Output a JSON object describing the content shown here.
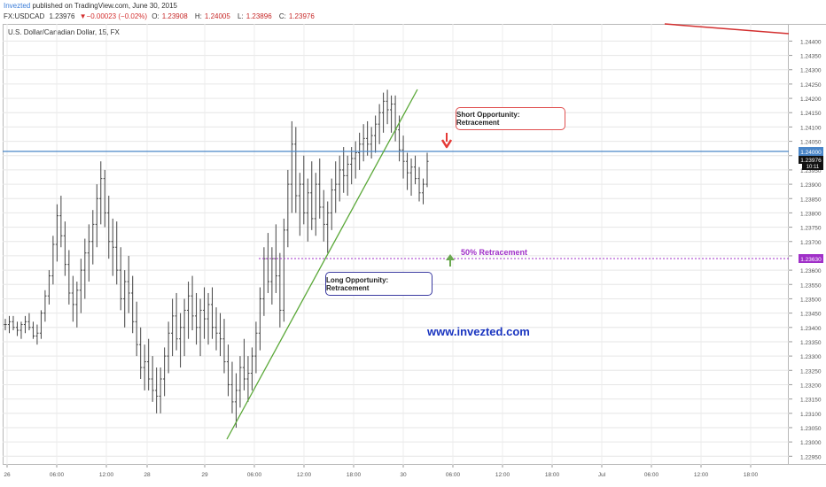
{
  "header": {
    "brand": "Invezted",
    "published": " published on TradingView.com, June 30, 2015",
    "symbol": "FX:USDCAD",
    "last": "1.23976",
    "change": "▼−0.00023 (−0.02%)",
    "open_label": "O:",
    "open": "1.23908",
    "high_label": "H:",
    "high": "1.24005",
    "low_label": "L:",
    "low": "1.23896",
    "close_label": "C:",
    "close": "1.23976"
  },
  "chart_title": "U.S. Dollar/Canadian Dollar, 15, FX",
  "annotations": {
    "short": "Short Opportunity: Retracement",
    "long": "Long Opportunity: Retracement",
    "retracement": "50% Retracement",
    "watermark": "www.invezted.com"
  },
  "colors": {
    "up_arrow": "#6aa84f",
    "down_arrow": "#e53935",
    "resistance_line": "#4a86c8",
    "retracement_line": "#a030c8",
    "trend_line": "#5aa838",
    "top_line": "#d32f2f"
  },
  "chart_data": {
    "type": "bar",
    "title": "U.S. Dollar/Canadian Dollar, 15, FX",
    "ylim": [
      1.2292,
      1.2446
    ],
    "y_ticks": [
      1.244,
      1.2435,
      1.243,
      1.2425,
      1.242,
      1.2415,
      1.241,
      1.2405,
      1.24,
      1.2395,
      1.239,
      1.2385,
      1.238,
      1.2375,
      1.237,
      1.2365,
      1.236,
      1.2355,
      1.235,
      1.2345,
      1.234,
      1.2335,
      1.233,
      1.2325,
      1.232,
      1.2315,
      1.231,
      1.2305,
      1.23,
      1.2295
    ],
    "y_tick_labels": [
      "1.24400",
      "1.24350",
      "1.24300",
      "1.24250",
      "1.24200",
      "1.24150",
      "1.24100",
      "1.24050",
      "1.24000",
      "1.23950",
      "1.23900",
      "1.23850",
      "1.23800",
      "1.23750",
      "1.23700",
      "1.23650",
      "1.23600",
      "1.23550",
      "1.23500",
      "1.23450",
      "1.23400",
      "1.23350",
      "1.23300",
      "1.23250",
      "1.23200",
      "1.23150",
      "1.23100",
      "1.23050",
      "1.23000",
      "1.22950"
    ],
    "x_ticks": [
      "26",
      "06:00",
      "12:00",
      "28",
      "29",
      "06:00",
      "12:00",
      "18:00",
      "30",
      "06:00",
      "12:00",
      "18:00",
      "Jul",
      "06:00",
      "12:00",
      "18:00"
    ],
    "price_labels": {
      "resistance": "1.24000",
      "last": "1.23976",
      "time": "10:11",
      "retracement": "1.23630"
    },
    "levels": {
      "resistance": 1.24,
      "retracement": 1.2363
    },
    "ohlc_bars": [
      [
        1.2341,
        1.2343,
        1.2339,
        1.2341
      ],
      [
        1.2341,
        1.2344,
        1.2338,
        1.2342
      ],
      [
        1.2342,
        1.2344,
        1.2339,
        1.234
      ],
      [
        1.234,
        1.2342,
        1.2337,
        1.2339
      ],
      [
        1.2339,
        1.2342,
        1.2336,
        1.2341
      ],
      [
        1.2341,
        1.2344,
        1.2338,
        1.2342
      ],
      [
        1.2342,
        1.2345,
        1.2339,
        1.234
      ],
      [
        1.234,
        1.2342,
        1.2336,
        1.2337
      ],
      [
        1.2337,
        1.2341,
        1.2334,
        1.2338
      ],
      [
        1.2338,
        1.2346,
        1.2336,
        1.2345
      ],
      [
        1.2345,
        1.2353,
        1.2342,
        1.2351
      ],
      [
        1.2351,
        1.236,
        1.2348,
        1.2358
      ],
      [
        1.2358,
        1.2372,
        1.2355,
        1.2369
      ],
      [
        1.2369,
        1.2383,
        1.2363,
        1.2379
      ],
      [
        1.2379,
        1.2386,
        1.2368,
        1.2372
      ],
      [
        1.2372,
        1.2377,
        1.2358,
        1.2362
      ],
      [
        1.2362,
        1.2367,
        1.2348,
        1.2352
      ],
      [
        1.2352,
        1.2358,
        1.2342,
        1.2348
      ],
      [
        1.2348,
        1.2356,
        1.234,
        1.2353
      ],
      [
        1.2353,
        1.2364,
        1.2345,
        1.236
      ],
      [
        1.236,
        1.2371,
        1.235,
        1.2366
      ],
      [
        1.2366,
        1.2376,
        1.2356,
        1.237
      ],
      [
        1.237,
        1.2381,
        1.2362,
        1.2376
      ],
      [
        1.2376,
        1.239,
        1.2368,
        1.2385
      ],
      [
        1.2385,
        1.2398,
        1.2376,
        1.2392
      ],
      [
        1.2392,
        1.2395,
        1.2375,
        1.238
      ],
      [
        1.238,
        1.2386,
        1.2364,
        1.237
      ],
      [
        1.237,
        1.2378,
        1.2358,
        1.2368
      ],
      [
        1.2368,
        1.2377,
        1.2355,
        1.236
      ],
      [
        1.236,
        1.2368,
        1.2346,
        1.235
      ],
      [
        1.235,
        1.236,
        1.234,
        1.2356
      ],
      [
        1.2356,
        1.2365,
        1.2345,
        1.2352
      ],
      [
        1.2352,
        1.2358,
        1.2338,
        1.2342
      ],
      [
        1.2342,
        1.2349,
        1.233,
        1.2334
      ],
      [
        1.2334,
        1.234,
        1.2322,
        1.2326
      ],
      [
        1.2326,
        1.2334,
        1.2318,
        1.2328
      ],
      [
        1.2328,
        1.2336,
        1.2318,
        1.2322
      ],
      [
        1.2322,
        1.233,
        1.2314,
        1.2318
      ],
      [
        1.2318,
        1.2326,
        1.231,
        1.2316
      ],
      [
        1.2316,
        1.2326,
        1.231,
        1.2322
      ],
      [
        1.2322,
        1.2333,
        1.2316,
        1.233
      ],
      [
        1.233,
        1.2342,
        1.2324,
        1.2338
      ],
      [
        1.2338,
        1.235,
        1.233,
        1.2344
      ],
      [
        1.2344,
        1.2352,
        1.2332,
        1.2336
      ],
      [
        1.2336,
        1.2345,
        1.2326,
        1.234
      ],
      [
        1.234,
        1.235,
        1.233,
        1.2346
      ],
      [
        1.2346,
        1.2356,
        1.2336,
        1.2351
      ],
      [
        1.2351,
        1.2358,
        1.2339,
        1.2344
      ],
      [
        1.2344,
        1.2352,
        1.2334,
        1.234
      ],
      [
        1.234,
        1.235,
        1.233,
        1.2346
      ],
      [
        1.2346,
        1.2354,
        1.2336,
        1.2343
      ],
      [
        1.2343,
        1.2352,
        1.2334,
        1.2348
      ],
      [
        1.2348,
        1.2354,
        1.2336,
        1.234
      ],
      [
        1.234,
        1.2347,
        1.2332,
        1.2338
      ],
      [
        1.2338,
        1.2345,
        1.233,
        1.2336
      ],
      [
        1.2336,
        1.2343,
        1.2324,
        1.2328
      ],
      [
        1.2328,
        1.2334,
        1.2316,
        1.232
      ],
      [
        1.232,
        1.2328,
        1.231,
        1.2314
      ],
      [
        1.2314,
        1.2324,
        1.2305,
        1.2318
      ],
      [
        1.2318,
        1.233,
        1.2312,
        1.2326
      ],
      [
        1.2326,
        1.2336,
        1.2318,
        1.2322
      ],
      [
        1.2322,
        1.233,
        1.2314,
        1.2324
      ],
      [
        1.2324,
        1.2333,
        1.2318,
        1.233
      ],
      [
        1.233,
        1.2342,
        1.2324,
        1.2338
      ],
      [
        1.2338,
        1.2354,
        1.2332,
        1.235
      ],
      [
        1.235,
        1.2368,
        1.2344,
        1.2364
      ],
      [
        1.2364,
        1.2373,
        1.2352,
        1.2356
      ],
      [
        1.2356,
        1.2368,
        1.2348,
        1.2364
      ],
      [
        1.2364,
        1.2376,
        1.2352,
        1.2358
      ],
      [
        1.2358,
        1.2366,
        1.234,
        1.2346
      ],
      [
        1.2346,
        1.2378,
        1.2342,
        1.2374
      ],
      [
        1.2374,
        1.2395,
        1.2368,
        1.239
      ],
      [
        1.239,
        1.2412,
        1.238,
        1.2404
      ],
      [
        1.2404,
        1.241,
        1.238,
        1.2386
      ],
      [
        1.2386,
        1.2394,
        1.2372,
        1.239
      ],
      [
        1.239,
        1.24,
        1.2376,
        1.238
      ],
      [
        1.238,
        1.2392,
        1.237,
        1.2387
      ],
      [
        1.2387,
        1.2398,
        1.2374,
        1.2378
      ],
      [
        1.2378,
        1.2394,
        1.2372,
        1.239
      ],
      [
        1.239,
        1.2399,
        1.2378,
        1.2382
      ],
      [
        1.2382,
        1.2388,
        1.237,
        1.2376
      ],
      [
        1.2376,
        1.2384,
        1.2366,
        1.238
      ],
      [
        1.238,
        1.2392,
        1.2374,
        1.2388
      ],
      [
        1.2388,
        1.2398,
        1.238,
        1.239
      ],
      [
        1.239,
        1.24,
        1.2384,
        1.2395
      ],
      [
        1.2395,
        1.2403,
        1.2387,
        1.2393
      ],
      [
        1.2393,
        1.24,
        1.2386,
        1.2397
      ],
      [
        1.2397,
        1.2403,
        1.239,
        1.2399
      ],
      [
        1.2399,
        1.2405,
        1.2392,
        1.2401
      ],
      [
        1.2401,
        1.2408,
        1.2395,
        1.2404
      ],
      [
        1.2404,
        1.2411,
        1.2398,
        1.2406
      ],
      [
        1.2406,
        1.2412,
        1.24,
        1.2404
      ],
      [
        1.2404,
        1.241,
        1.2399,
        1.2407
      ],
      [
        1.2407,
        1.2414,
        1.2401,
        1.2411
      ],
      [
        1.2411,
        1.2418,
        1.2404,
        1.2415
      ],
      [
        1.2415,
        1.2422,
        1.2408,
        1.2419
      ],
      [
        1.2419,
        1.2423,
        1.2411,
        1.2416
      ],
      [
        1.2416,
        1.2421,
        1.2408,
        1.2418
      ],
      [
        1.2418,
        1.2421,
        1.2405,
        1.2409
      ],
      [
        1.2409,
        1.2414,
        1.2398,
        1.2402
      ],
      [
        1.2402,
        1.2407,
        1.2392,
        1.2398
      ],
      [
        1.2398,
        1.2401,
        1.2388,
        1.2394
      ],
      [
        1.2394,
        1.2399,
        1.2386,
        1.2396
      ],
      [
        1.2396,
        1.24,
        1.239,
        1.2392
      ],
      [
        1.2392,
        1.2396,
        1.2384,
        1.2387
      ],
      [
        1.2387,
        1.2392,
        1.2383,
        1.239
      ],
      [
        1.239,
        1.2401,
        1.2389,
        1.2398
      ]
    ]
  }
}
